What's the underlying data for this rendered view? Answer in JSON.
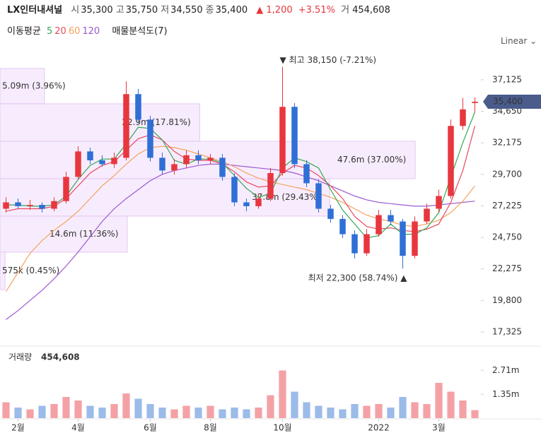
{
  "header": {
    "name": "LX인터내셔널",
    "quote": [
      {
        "label": "시",
        "value": "35,300"
      },
      {
        "label": "고",
        "value": "35,750"
      },
      {
        "label": "저",
        "value": "34,550"
      },
      {
        "label": "종",
        "value": "35,400"
      }
    ],
    "change": "▲ 1,200",
    "change_pct": "+3.51%",
    "volume_label": "거",
    "volume": "454,608",
    "ma_label": "이동평균",
    "profile_label": "매물분석도(7)",
    "scale": "Linear"
  },
  "chart_data": {
    "type": "candlestick",
    "categories": [
      null,
      "2월",
      null,
      null,
      null,
      null,
      "4월",
      null,
      null,
      null,
      null,
      null,
      "6월",
      null,
      null,
      null,
      null,
      "8월",
      null,
      null,
      null,
      null,
      null,
      "10월",
      null,
      null,
      null,
      null,
      null,
      null,
      null,
      "2022",
      null,
      null,
      null,
      null,
      "3월",
      null,
      null,
      null
    ],
    "open": [
      27000,
      27500,
      27200,
      27300,
      27000,
      27600,
      29500,
      31500,
      30800,
      30500,
      31000,
      36000,
      34000,
      31000,
      30000,
      30500,
      31200,
      30800,
      31000,
      29500,
      27500,
      27200,
      27800,
      29800,
      35000,
      30500,
      29000,
      27000,
      26200,
      25000,
      23500,
      25000,
      26500,
      26000,
      23300,
      26000,
      27000,
      28000,
      33500,
      35300
    ],
    "high": [
      27900,
      27800,
      27700,
      27500,
      27900,
      29900,
      31900,
      31800,
      31200,
      31400,
      37000,
      36400,
      34300,
      31400,
      30900,
      31600,
      31600,
      31300,
      31300,
      29800,
      27800,
      28200,
      30200,
      38150,
      35300,
      30800,
      29300,
      27300,
      26500,
      25300,
      25400,
      26900,
      26900,
      26200,
      26400,
      27400,
      28500,
      34000,
      35700,
      35750
    ],
    "low": [
      26700,
      27000,
      26900,
      26700,
      26800,
      27400,
      29300,
      30500,
      30300,
      30200,
      30800,
      33700,
      30700,
      29700,
      29700,
      30200,
      30500,
      30500,
      29200,
      27200,
      26800,
      27000,
      27600,
      29600,
      30200,
      28700,
      26700,
      25900,
      24700,
      23100,
      23300,
      24800,
      25700,
      22300,
      23100,
      25800,
      26700,
      27800,
      33200,
      34550
    ],
    "close": [
      27500,
      27200,
      27300,
      27000,
      27600,
      29500,
      31500,
      30800,
      30500,
      31000,
      36000,
      34000,
      31000,
      30000,
      30500,
      31200,
      30800,
      31000,
      29500,
      27500,
      27200,
      27800,
      29800,
      35000,
      30500,
      29000,
      27000,
      26200,
      25000,
      23500,
      25000,
      26500,
      26000,
      23300,
      26000,
      27000,
      28000,
      33500,
      34800,
      35400
    ],
    "up_color": "#e8363f",
    "down_color": "#2f6fd6",
    "series": [
      {
        "name": "5",
        "color": "#34a853",
        "values": [
          27300,
          27300,
          27200,
          27200,
          27300,
          28000,
          29300,
          30400,
          30900,
          30900,
          32100,
          33400,
          33300,
          32400,
          30800,
          30500,
          30900,
          30900,
          30600,
          29600,
          28600,
          27900,
          28200,
          30200,
          31000,
          30700,
          30200,
          28500,
          26900,
          25800,
          24700,
          24900,
          25800,
          25000,
          25000,
          25500,
          26700,
          29500,
          32200,
          34600
        ]
      },
      {
        "name": "20",
        "color": "#e84a5f",
        "values": [
          26800,
          27000,
          27000,
          27000,
          27200,
          27800,
          28800,
          29800,
          30400,
          30700,
          31600,
          32500,
          32800,
          32400,
          31500,
          30900,
          30800,
          30800,
          30500,
          29900,
          29100,
          28700,
          28800,
          29800,
          30400,
          30200,
          29600,
          28800,
          27800,
          26400,
          25600,
          25400,
          25500,
          25300,
          25200,
          25400,
          25800,
          27500,
          30000,
          33500
        ]
      },
      {
        "name": "60",
        "color": "#f5a25d",
        "values": [
          20500,
          22000,
          23500,
          24500,
          25300,
          26000,
          26800,
          27800,
          28800,
          29600,
          30500,
          31300,
          31800,
          31900,
          31800,
          31600,
          31300,
          31000,
          30700,
          30300,
          29800,
          29400,
          29100,
          28900,
          28700,
          28500,
          28200,
          27900,
          27500,
          27000,
          26500,
          26200,
          26000,
          25700,
          25600,
          25800,
          26100,
          26700,
          27600,
          28800
        ]
      },
      {
        "name": "120",
        "color": "#9b59d0",
        "values": [
          18300,
          19000,
          19800,
          20600,
          21500,
          22500,
          23600,
          24800,
          26000,
          27000,
          27800,
          28500,
          29200,
          29700,
          30000,
          30200,
          30400,
          30500,
          30500,
          30400,
          30300,
          30200,
          30100,
          30000,
          29800,
          29500,
          29200,
          28800,
          28400,
          28000,
          27700,
          27500,
          27400,
          27300,
          27200,
          27200,
          27300,
          27400,
          27500,
          27600
        ]
      }
    ],
    "ylim": [
      16490,
      39230
    ],
    "yticks": [
      {
        "value": 37125,
        "label": "37,125"
      },
      {
        "value": 34650,
        "label": "34,650"
      },
      {
        "value": 32175,
        "label": "32,175"
      },
      {
        "value": 29700,
        "label": "29,700"
      },
      {
        "value": 27225,
        "label": "27,225"
      },
      {
        "value": 24750,
        "label": "24,750"
      },
      {
        "value": 22275,
        "label": "22,275"
      },
      {
        "value": 19800,
        "label": "19,800"
      },
      {
        "value": 17325,
        "label": "17,325"
      }
    ],
    "last_label": "35,400",
    "high_label": "▼ 최고 38,150 (-7.21%)",
    "low_label": "최저 22,300 (58.74%) ▲",
    "volume_profile": [
      {
        "low": 35240,
        "high": 38010,
        "volume": 5090000,
        "label": "5.09m (3.96%)"
      },
      {
        "low": 32300,
        "high": 35240,
        "volume": 22900000,
        "label": "22.9m (17.81%)"
      },
      {
        "low": 29360,
        "high": 32300,
        "volume": 47600000,
        "label": "47.6m (37.00%)"
      },
      {
        "low": 26420,
        "high": 29360,
        "volume": 37800000,
        "label": "37.8m (29.43%)"
      },
      {
        "low": 23590,
        "high": 26420,
        "volume": 14600000,
        "label": "14.6m (11.36%)"
      },
      {
        "low": 20650,
        "high": 23590,
        "volume": 575000,
        "label": "575k (0.45%)"
      }
    ],
    "volume": {
      "label": "거래량",
      "last_label": "454,608",
      "values": [
        900000,
        600000,
        500000,
        700000,
        800000,
        1200000,
        1000000,
        700000,
        600000,
        800000,
        1400000,
        1100000,
        800000,
        600000,
        500000,
        700000,
        600000,
        700000,
        500000,
        600000,
        500000,
        600000,
        1300000,
        2700000,
        1500000,
        900000,
        700000,
        600000,
        500000,
        800000,
        700000,
        800000,
        600000,
        1200000,
        900000,
        800000,
        2000000,
        1500000,
        1000000,
        454608
      ],
      "ylim": [
        0,
        4080000
      ],
      "yticks": [
        {
          "value": 2710000,
          "label": "2.71m"
        },
        {
          "value": 1350000,
          "label": "1.35m"
        }
      ]
    }
  }
}
